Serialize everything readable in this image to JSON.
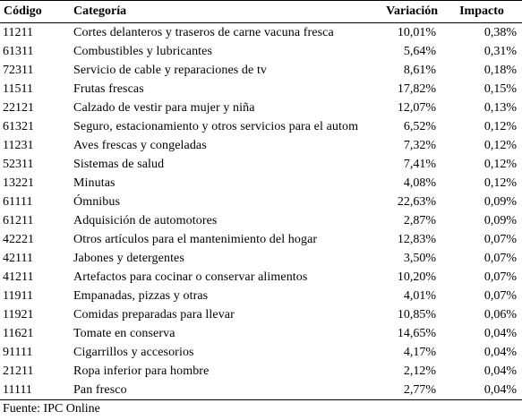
{
  "table": {
    "headers": {
      "code": "Código",
      "category": "Categoría",
      "variation": "Variación",
      "impact": "Impacto"
    },
    "rows": [
      {
        "code": "11211",
        "category": "Cortes delanteros y traseros de carne vacuna fresca",
        "variation": "10,01%",
        "impact": "0,38%"
      },
      {
        "code": "61311",
        "category": "Combustibles y lubricantes",
        "variation": "5,64%",
        "impact": "0,31%"
      },
      {
        "code": "72311",
        "category": "Servicio de cable y reparaciones de tv",
        "variation": "8,61%",
        "impact": "0,18%"
      },
      {
        "code": "11511",
        "category": "Frutas frescas",
        "variation": "17,82%",
        "impact": "0,15%"
      },
      {
        "code": "22121",
        "category": "Calzado de vestir para mujer y niña",
        "variation": "12,07%",
        "impact": "0,13%"
      },
      {
        "code": "61321",
        "category": "Seguro, estacionamiento y otros servicios para el automó",
        "variation": "6,52%",
        "impact": "0,12%"
      },
      {
        "code": "11231",
        "category": "Aves frescas y congeladas",
        "variation": "7,32%",
        "impact": "0,12%"
      },
      {
        "code": "52311",
        "category": "Sistemas de salud",
        "variation": "7,41%",
        "impact": "0,12%"
      },
      {
        "code": "13221",
        "category": "Minutas",
        "variation": "4,08%",
        "impact": "0,12%"
      },
      {
        "code": "61111",
        "category": "Ómnibus",
        "variation": "22,63%",
        "impact": "0,09%"
      },
      {
        "code": "61211",
        "category": "Adquisición de automotores",
        "variation": "2,87%",
        "impact": "0,09%"
      },
      {
        "code": "42221",
        "category": "Otros artículos para el mantenimiento del hogar",
        "variation": "12,83%",
        "impact": "0,07%"
      },
      {
        "code": "42111",
        "category": "Jabones y detergentes",
        "variation": "3,50%",
        "impact": "0,07%"
      },
      {
        "code": "41211",
        "category": "Artefactos para cocinar o conservar alimentos",
        "variation": "10,20%",
        "impact": "0,07%"
      },
      {
        "code": "11911",
        "category": "Empanadas, pizzas y otras",
        "variation": "4,01%",
        "impact": "0,07%"
      },
      {
        "code": "11921",
        "category": "Comidas preparadas para llevar",
        "variation": "10,85%",
        "impact": "0,06%"
      },
      {
        "code": "11621",
        "category": "Tomate en conserva",
        "variation": "14,65%",
        "impact": "0,04%"
      },
      {
        "code": "91111",
        "category": "Cigarrillos y accesorios",
        "variation": "4,17%",
        "impact": "0,04%"
      },
      {
        "code": "21211",
        "category": "Ropa inferior para hombre",
        "variation": "2,12%",
        "impact": "0,04%"
      },
      {
        "code": "11111",
        "category": "Pan fresco",
        "variation": "2,77%",
        "impact": "0,04%"
      }
    ]
  },
  "footer": {
    "source": "Fuente: IPC Online"
  }
}
